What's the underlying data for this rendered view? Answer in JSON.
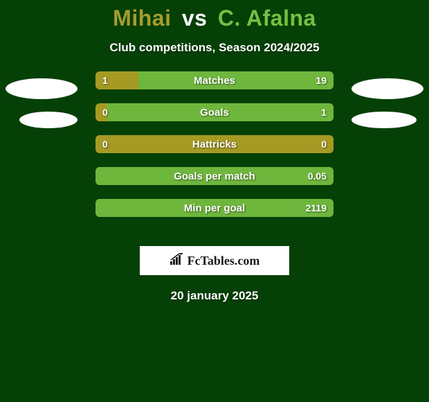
{
  "background_color": "#054006",
  "title": {
    "player_left": "Mihai",
    "vs": "vs",
    "player_right": "C. Afalna",
    "left_color": "#a79c2e",
    "vs_color": "#ffffff",
    "right_color": "#76c043",
    "fontsize": 32
  },
  "subtitle": {
    "text": "Club competitions, Season 2024/2025",
    "color": "#ffffff",
    "fontsize": 17
  },
  "bar_colors": {
    "left": "#a59a23",
    "right": "#6fb63d",
    "track": "#3f6b2f"
  },
  "bar_style": {
    "height": 26,
    "border_radius": 6,
    "gap": 20,
    "center_label_fontsize": 15,
    "value_fontsize": 14
  },
  "bars": [
    {
      "label": "Matches",
      "left_val": "1",
      "right_val": "19",
      "left_pct": 18,
      "right_pct": 82
    },
    {
      "label": "Goals",
      "left_val": "0",
      "right_val": "1",
      "left_pct": 5,
      "right_pct": 95
    },
    {
      "label": "Hattricks",
      "left_val": "0",
      "right_val": "0",
      "left_pct": 100,
      "right_pct": 0
    },
    {
      "label": "Goals per match",
      "left_val": "",
      "right_val": "0.05",
      "left_pct": 0,
      "right_pct": 100
    },
    {
      "label": "Min per goal",
      "left_val": "",
      "right_val": "2119",
      "left_pct": 0,
      "right_pct": 100
    }
  ],
  "ellipses_color": "#ffffff",
  "logo": {
    "text": "FcTables.com",
    "box_bg": "#ffffff",
    "text_color": "#1a1a1a",
    "fontsize": 18
  },
  "date": {
    "text": "20 january 2025",
    "color": "#ffffff",
    "fontsize": 17
  }
}
